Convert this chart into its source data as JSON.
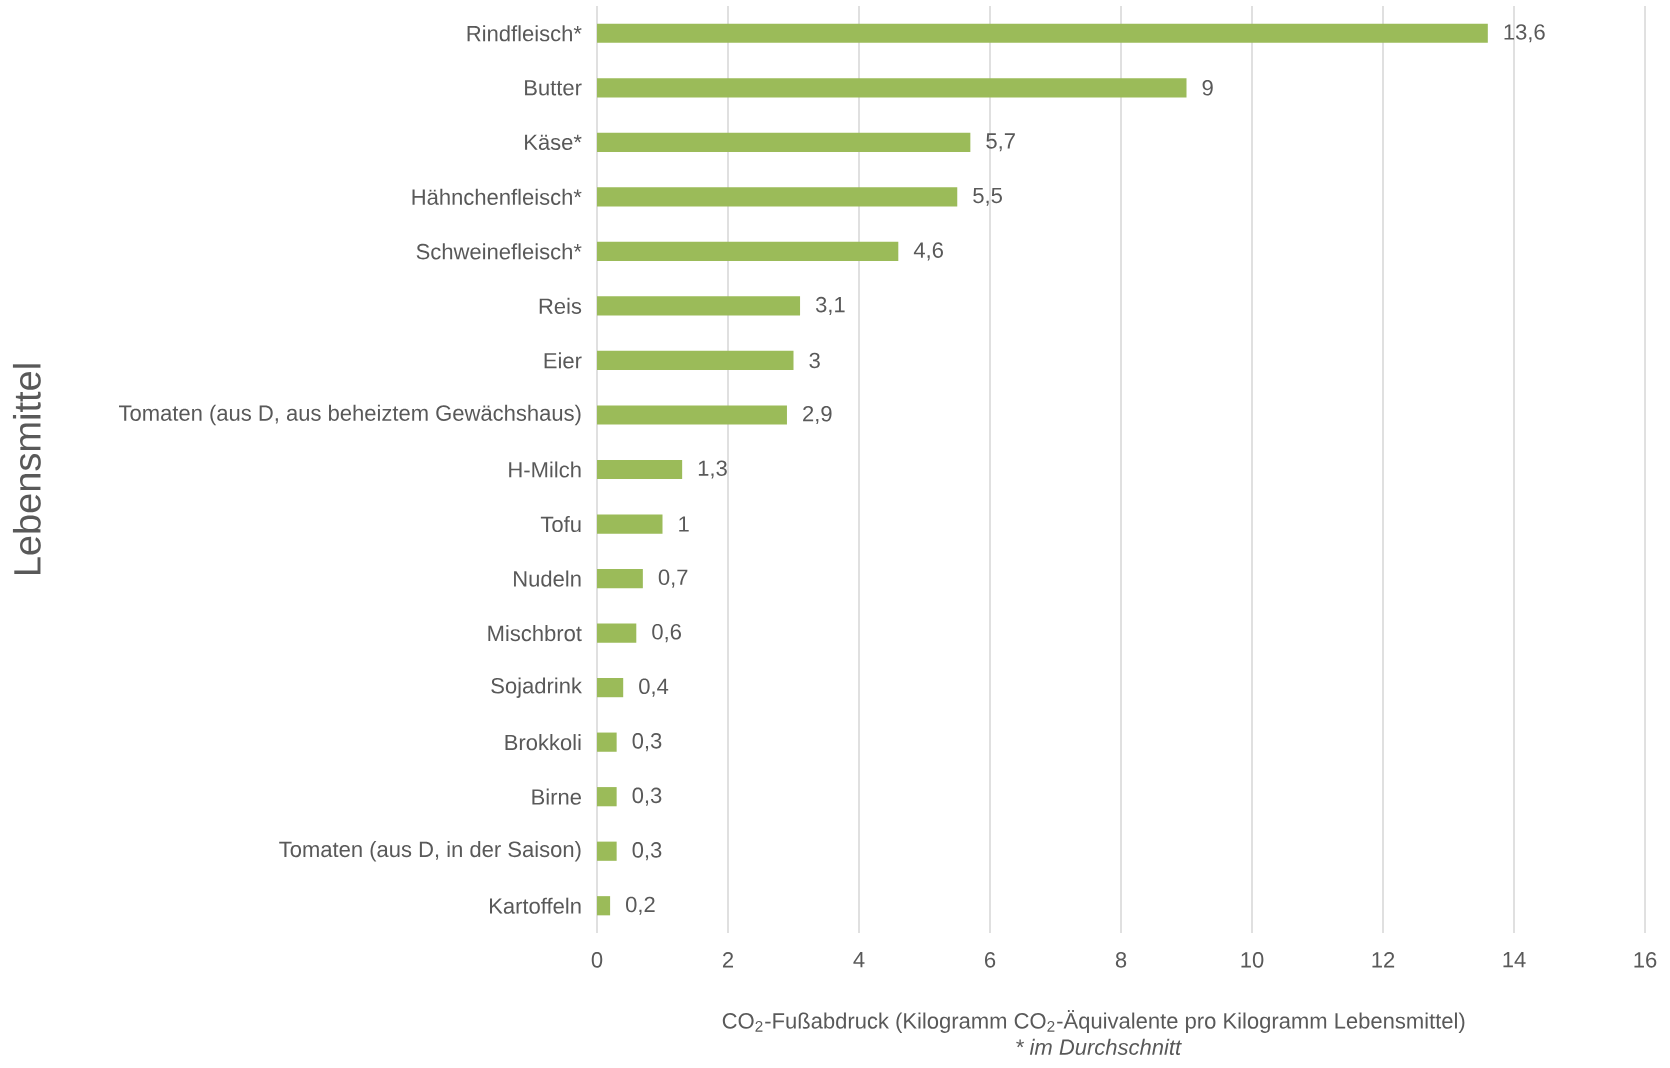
{
  "chart_data": {
    "type": "bar",
    "orientation": "horizontal",
    "categories": [
      "Rindfleisch*",
      "Butter",
      "Käse*",
      "Hähnchenfleisch*",
      "Schweinefleisch*",
      "Reis",
      "Eier",
      "Tomaten (aus D, aus beheiztem Gewächshaus)",
      "H-Milch",
      "Tofu",
      "Nudeln",
      "Mischbrot",
      "Sojadrink",
      "Brokkoli",
      "Birne",
      "Tomaten (aus D, in der Saison)",
      "Kartoffeln"
    ],
    "values": [
      13.6,
      9,
      5.7,
      5.5,
      4.6,
      3.1,
      3,
      2.9,
      1.3,
      1,
      0.7,
      0.6,
      0.4,
      0.3,
      0.3,
      0.3,
      0.2
    ],
    "value_labels": [
      "13,6",
      "9",
      "5,7",
      "5,5",
      "4,6",
      "3,1",
      "3",
      "2,9",
      "1,3",
      "1",
      "0,7",
      "0,6",
      "0,4",
      "0,3",
      "0,3",
      "0,3",
      "0,2"
    ],
    "color": "#9bbb59",
    "xlim": [
      0,
      16
    ],
    "xticks": [
      0,
      2,
      4,
      6,
      8,
      10,
      12,
      14,
      16
    ],
    "grid": "x",
    "xlabel": "CO$_{2}$-Fußabdruck (Kilogramm CO$_{2}$-Äquivalente pro Kilogramm Lebensmittel)",
    "ylabel": "Lebensmittel",
    "annotations": [
      "* im Durchschnitt"
    ]
  }
}
